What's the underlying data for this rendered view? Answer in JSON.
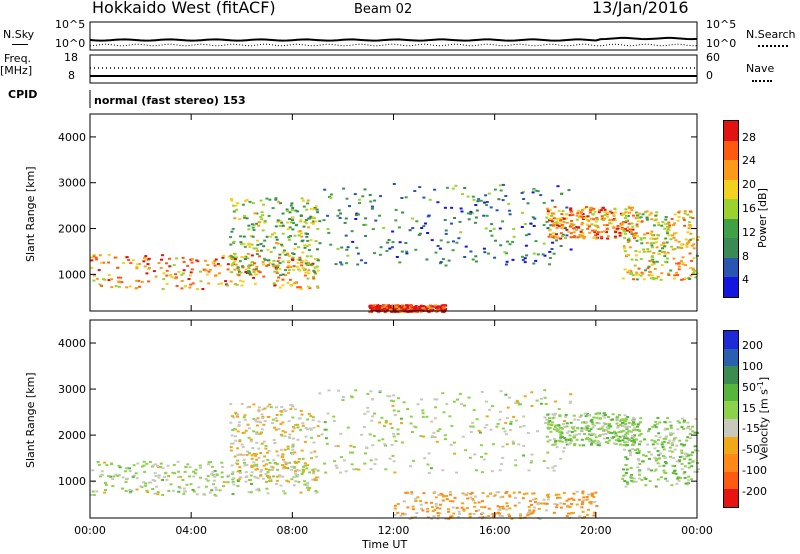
{
  "header": {
    "station": "Hokkaido West (fitACF)",
    "beam": "Beam 02",
    "date": "13/Jan/2016"
  },
  "top_panels": {
    "nsky_label": "N.Sky",
    "nsky_tick_top": "10^5",
    "nsky_tick_bottom": "10^0",
    "nsearch_label": "N.Search",
    "freq_label": "Freq.",
    "freq_unit": "[MHz]",
    "freq_tick_top": "18",
    "freq_tick_bottom": "8",
    "nave_label": "Nave",
    "nave_tick_top": "60",
    "nave_tick_bottom": "0",
    "cpid_label": "CPID",
    "cpid_value": "normal (fast stereo) 153"
  },
  "colors": {
    "power": [
      "#1515e0",
      "#2a55b0",
      "#3a8a55",
      "#3fa045",
      "#9bd22e",
      "#f2d21e",
      "#ff9a18",
      "#ff5a10",
      "#e01212"
    ],
    "velocity": [
      "#1e2ad6",
      "#2b5fb0",
      "#3a8c50",
      "#55b63b",
      "#8cd24a",
      "#c8c8bc",
      "#f0a818",
      "#ff8818",
      "#ff5a12",
      "#e81414"
    ]
  },
  "chart_data": [
    {
      "type": "heatmap",
      "title": "",
      "xlabel": "Time UT",
      "ylabel": "Slant Range [km]",
      "x_ticks": [
        "00:00",
        "04:00",
        "08:00",
        "12:00",
        "16:00",
        "20:00",
        "00:00"
      ],
      "y_ticks": [
        "1000",
        "2000",
        "3000",
        "4000"
      ],
      "ylim": [
        200,
        4500
      ],
      "colorbar_label": "Power [dB]",
      "colorbar_ticks": [
        "4",
        "8",
        "12",
        "16",
        "20",
        "24",
        "28"
      ],
      "scale_range": [
        0,
        30
      ],
      "features": [
        {
          "name": "night_band",
          "hours": [
            0,
            9
          ],
          "range_km": [
            700,
            1450
          ],
          "value_db": 22
        },
        {
          "name": "rise_band",
          "hours": [
            5.5,
            9
          ],
          "range_km": [
            1000,
            2700
          ],
          "value_db": 14
        },
        {
          "name": "midday_scatter",
          "hours": [
            9,
            19
          ],
          "range_km": [
            1200,
            3000
          ],
          "value_db": 8
        },
        {
          "name": "evening_band",
          "hours": [
            18,
            21.5
          ],
          "range_km": [
            1800,
            2500
          ],
          "value_db": 22
        },
        {
          "name": "return_band",
          "hours": [
            21,
            24
          ],
          "range_km": [
            900,
            2400
          ],
          "value_db": 18
        },
        {
          "name": "near_range_strong",
          "hours": [
            11,
            14
          ],
          "range_km": [
            200,
            350
          ],
          "value_db": 28
        }
      ]
    },
    {
      "type": "heatmap",
      "title": "",
      "xlabel": "Time UT",
      "ylabel": "Slant Range [km]",
      "x_ticks": [
        "00:00",
        "04:00",
        "08:00",
        "12:00",
        "16:00",
        "20:00",
        "00:00"
      ],
      "y_ticks": [
        "1000",
        "2000",
        "3000",
        "4000"
      ],
      "ylim": [
        200,
        4500
      ],
      "colorbar_label": "Velocity [m s^-1]",
      "colorbar_ticks": [
        "200",
        "100",
        "50",
        "15",
        "-15",
        "-50",
        "-100",
        "-200"
      ],
      "scale_range": [
        -250,
        250
      ],
      "features": [
        {
          "name": "night_band",
          "hours": [
            0,
            9
          ],
          "range_km": [
            700,
            1450
          ],
          "value_ms": 0
        },
        {
          "name": "rise_band",
          "hours": [
            5.5,
            9
          ],
          "range_km": [
            1000,
            2700
          ],
          "value_ms": -40
        },
        {
          "name": "midday_scatter",
          "hours": [
            9,
            19
          ],
          "range_km": [
            1200,
            3000
          ],
          "value_ms": 0
        },
        {
          "name": "evening_band",
          "hours": [
            18,
            21.5
          ],
          "range_km": [
            1800,
            2500
          ],
          "value_ms": 20
        },
        {
          "name": "return_band",
          "hours": [
            21,
            24
          ],
          "range_km": [
            900,
            2400
          ],
          "value_ms": 30
        },
        {
          "name": "near_range_mixed",
          "hours": [
            12,
            20
          ],
          "range_km": [
            200,
            800
          ],
          "value_ms": -80
        }
      ]
    }
  ]
}
